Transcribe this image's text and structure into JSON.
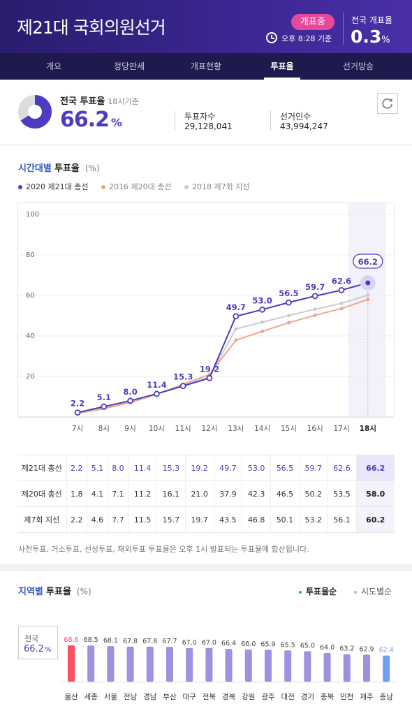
{
  "header": {
    "title": "제21대 국회의원선거",
    "badge": "개표중",
    "base_time": "오후 8:28 기준",
    "national_count_label": "전국 개표율",
    "national_count_value": "0.3",
    "national_count_unit": "%",
    "accent": "#e6489a"
  },
  "nav": {
    "tabs": [
      {
        "label": "개요",
        "active": false
      },
      {
        "label": "정당판세",
        "active": false
      },
      {
        "label": "개표현황",
        "active": false
      },
      {
        "label": "투표율",
        "active": true
      },
      {
        "label": "선거방송",
        "active": false
      }
    ]
  },
  "summary": {
    "title": "전국 투표율",
    "basis": "18시기준",
    "value": "66.2",
    "unit": "%",
    "donut_fraction": 0.662,
    "voters_label": "투표자수",
    "voters_value": "29,128,041",
    "electorate_label": "선거인수",
    "electorate_value": "43,994,247",
    "refresh_icon": "refresh-icon"
  },
  "hourly": {
    "title_a": "시간대별",
    "title_b": "투표율",
    "unit": "(%)",
    "legend": [
      "2020 제21대 총선",
      "2016 제20대 총선",
      "2018 제7회 지선"
    ],
    "note": "사전투표, 거소투표, 선상투표, 재외투표 투표율은 오후 1시 발표되는 투표율에 합산됩니다."
  },
  "chart_data": [
    {
      "type": "line",
      "x": [
        "7시",
        "8시",
        "9시",
        "10시",
        "11시",
        "12시",
        "13시",
        "14시",
        "15시",
        "16시",
        "17시",
        "18시"
      ],
      "ylim": [
        0,
        100
      ],
      "yticks": [
        20,
        40,
        60,
        80,
        100
      ],
      "grid": true,
      "legend_position": "top-left",
      "series": [
        {
          "name": "2020 제21대 총선",
          "color": "#4b3cc0",
          "values": [
            2.2,
            5.1,
            8.0,
            11.4,
            15.3,
            19.2,
            49.7,
            53.0,
            56.5,
            59.7,
            62.6,
            66.2
          ]
        },
        {
          "name": "2016 제20대 총선",
          "color": "#f0a58a",
          "values": [
            1.8,
            4.1,
            7.1,
            11.2,
            16.1,
            21.0,
            37.9,
            42.3,
            46.5,
            50.2,
            53.5,
            58.0
          ]
        },
        {
          "name": "2018 제7회 지선",
          "color": "#cccccc",
          "values": [
            2.2,
            4.6,
            7.7,
            11.5,
            15.7,
            19.7,
            43.5,
            46.8,
            50.1,
            53.2,
            56.1,
            60.2
          ]
        }
      ],
      "table": {
        "rows": [
          {
            "label": "제21대 총선",
            "values": [
              "2.2",
              "5.1",
              "8.0",
              "11.4",
              "15.3",
              "19.2",
              "49.7",
              "53.0",
              "56.5",
              "59.7",
              "62.6",
              "66.2"
            ]
          },
          {
            "label": "제20대 총선",
            "values": [
              "1.8",
              "4.1",
              "7.1",
              "11.2",
              "16.1",
              "21.0",
              "37.9",
              "42.3",
              "46.5",
              "50.2",
              "53.5",
              "58.0"
            ]
          },
          {
            "label": "제7회 지선",
            "values": [
              "2.2",
              "4.6",
              "7.7",
              "11.5",
              "15.7",
              "19.7",
              "43.5",
              "46.8",
              "50.1",
              "53.2",
              "56.1",
              "60.2"
            ]
          }
        ]
      }
    },
    {
      "type": "bar",
      "categories": [
        "울산",
        "세종",
        "서울",
        "전남",
        "경남",
        "부산",
        "대구",
        "전북",
        "경북",
        "강원",
        "광주",
        "대전",
        "경기",
        "충북",
        "인천",
        "제주",
        "충남"
      ],
      "values": [
        68.6,
        68.5,
        68.1,
        67.8,
        67.8,
        67.7,
        67.0,
        67.0,
        66.4,
        66.0,
        65.9,
        65.5,
        65.0,
        64.0,
        63.2,
        62.9,
        62.4
      ],
      "value_labels": [
        "68.6",
        "68.5",
        "68.1",
        "67.8",
        "67.8",
        "67.7",
        "67.0",
        "67.0",
        "66.4",
        "66.0",
        "65.9",
        "65.5",
        "65.0",
        "64.0",
        "63.2",
        "62.9",
        "62.4"
      ],
      "highest_color": "#ff4d5e",
      "lowest_color": "#6e9ff0",
      "default_color": "#9b92e0"
    }
  ],
  "regional": {
    "title_a": "지역별",
    "title_b": "투표율",
    "unit": "(%)",
    "sort_options": [
      "투표율순",
      "시도별순"
    ],
    "national_label": "전국",
    "national_value": "66.2",
    "national_unit": "%"
  }
}
